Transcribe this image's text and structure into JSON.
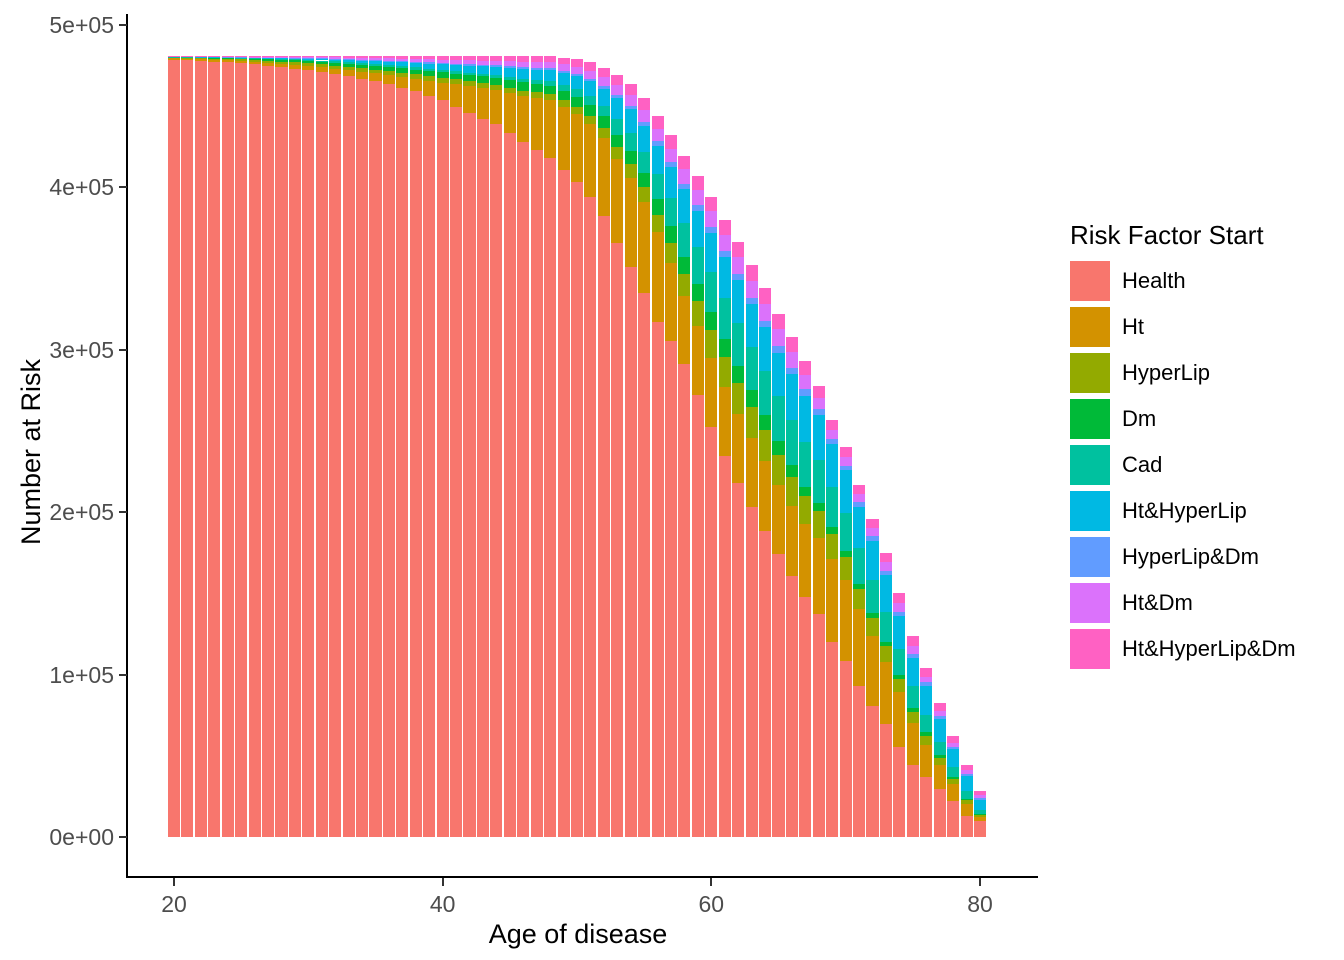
{
  "chart_data": {
    "type": "bar",
    "stacked": true,
    "title": "",
    "xlabel": "Age of disease",
    "ylabel": "Number at Risk",
    "legend_title": "Risk Factor Start",
    "legend_position": "right",
    "grid": false,
    "xlim": [
      17.5,
      83
    ],
    "ylim": [
      0,
      500000
    ],
    "x_ticks": [
      20,
      40,
      60,
      80
    ],
    "x_tick_labels": [
      "20",
      "40",
      "60",
      "80"
    ],
    "y_ticks": [
      0,
      100000,
      200000,
      300000,
      400000,
      500000
    ],
    "y_tick_labels": [
      "0e+00",
      "1e+05",
      "2e+05",
      "3e+05",
      "4e+05",
      "5e+05"
    ],
    "x": [
      20,
      21,
      22,
      23,
      24,
      25,
      26,
      27,
      28,
      29,
      30,
      31,
      32,
      33,
      34,
      35,
      36,
      37,
      38,
      39,
      40,
      41,
      42,
      43,
      44,
      45,
      46,
      47,
      48,
      49,
      50,
      51,
      52,
      53,
      54,
      55,
      56,
      57,
      58,
      59,
      60,
      61,
      62,
      63,
      64,
      65,
      66,
      67,
      68,
      69,
      70,
      71,
      72,
      73,
      74,
      75,
      76,
      77,
      78,
      79,
      80
    ],
    "series": [
      {
        "name": "Health",
        "color": "#F8766D",
        "values": [
          478750,
          478300,
          477800,
          477400,
          477000,
          476400,
          475700,
          474900,
          474000,
          473100,
          472200,
          470900,
          469600,
          468300,
          466900,
          465400,
          463500,
          461400,
          459400,
          456500,
          453600,
          449800,
          445750,
          442350,
          438850,
          433700,
          428250,
          423100,
          417900,
          410600,
          403200,
          393850,
          382700,
          365800,
          351100,
          334800,
          317300,
          305500,
          291100,
          272400,
          252400,
          234650,
          217800,
          203050,
          188600,
          174100,
          160700,
          147800,
          137400,
          120300,
          108400,
          93200,
          80800,
          69500,
          55550,
          44400,
          37200,
          29300,
          22100,
          13000,
          10000
        ]
      },
      {
        "name": "Ht",
        "color": "#D39200",
        "values": [
          800,
          900,
          1100,
          1200,
          1350,
          1500,
          1700,
          2000,
          2200,
          2500,
          2800,
          3200,
          3600,
          4000,
          4400,
          4900,
          5700,
          6600,
          7500,
          9200,
          11000,
          13700,
          16500,
          18700,
          21000,
          24500,
          28000,
          32000,
          36000,
          39000,
          42000,
          45000,
          48000,
          52000,
          55000,
          56000,
          55000,
          48000,
          42000,
          42000,
          42500,
          42500,
          42500,
          42500,
          43000,
          42500,
          43000,
          45000,
          47000,
          51000,
          50000,
          47000,
          43000,
          38500,
          33500,
          26000,
          19500,
          15000,
          10500,
          7500,
          2300
        ]
      },
      {
        "name": "HyperLip",
        "color": "#93AA00",
        "values": [
          500,
          600,
          650,
          750,
          800,
          900,
          1000,
          1100,
          1250,
          1350,
          1500,
          1650,
          1800,
          1950,
          2100,
          2300,
          2450,
          2600,
          2700,
          2850,
          3000,
          3000,
          3050,
          3050,
          3100,
          3200,
          3400,
          3500,
          3600,
          4000,
          4500,
          5200,
          6000,
          7000,
          8200,
          9500,
          11000,
          12500,
          13800,
          15500,
          17500,
          18500,
          19500,
          19500,
          19000,
          18500,
          18000,
          17000,
          16200,
          15400,
          14000,
          12500,
          11000,
          9500,
          8000,
          6800,
          5700,
          4300,
          3100,
          2100,
          1300
        ]
      },
      {
        "name": "Dm",
        "color": "#00BA38",
        "values": [
          400,
          500,
          550,
          650,
          700,
          800,
          900,
          1000,
          1150,
          1300,
          1400,
          1550,
          1700,
          1850,
          2000,
          2200,
          2400,
          2650,
          2850,
          3100,
          3300,
          3600,
          3950,
          4300,
          4600,
          4800,
          5000,
          5100,
          5200,
          5600,
          6000,
          6500,
          7000,
          7600,
          8200,
          8800,
          9400,
          10000,
          10500,
          10800,
          11000,
          10900,
          10500,
          10000,
          9200,
          8700,
          7200,
          6000,
          5000,
          4100,
          3800,
          3400,
          3100,
          2800,
          2600,
          2300,
          2100,
          1800,
          1400,
          1100,
          800
        ]
      },
      {
        "name": "Cad",
        "color": "#00C19F",
        "values": [
          150,
          200,
          230,
          270,
          300,
          350,
          420,
          500,
          580,
          660,
          750,
          850,
          960,
          1070,
          1180,
          1300,
          1350,
          1400,
          1400,
          1450,
          1500,
          1500,
          1500,
          1550,
          1600,
          1900,
          2300,
          2600,
          3000,
          3800,
          4600,
          5600,
          6700,
          9500,
          11000,
          13000,
          15500,
          17500,
          20500,
          22500,
          24500,
          25500,
          26500,
          26500,
          27000,
          27500,
          28000,
          27500,
          26500,
          24600,
          23500,
          22000,
          20500,
          18500,
          16000,
          13500,
          10700,
          8000,
          5800,
          4500,
          2200
        ]
      },
      {
        "name": "Ht&HyperLip",
        "color": "#00B9E3",
        "values": [
          150,
          200,
          230,
          270,
          300,
          350,
          430,
          500,
          600,
          700,
          800,
          950,
          1100,
          1300,
          1500,
          1700,
          2000,
          2300,
          2700,
          3000,
          3300,
          3700,
          4150,
          4600,
          5000,
          5500,
          6000,
          6300,
          6600,
          7400,
          8200,
          9200,
          10300,
          13000,
          14500,
          16000,
          17500,
          19000,
          21000,
          22500,
          24000,
          25000,
          26000,
          26500,
          27000,
          27000,
          28000,
          28500,
          28000,
          26700,
          26000,
          25000,
          24000,
          22500,
          20500,
          17500,
          18000,
          14500,
          11000,
          9500,
          6200
        ]
      },
      {
        "name": "HyperLip&Dm",
        "color": "#619CFF",
        "values": [
          50,
          60,
          80,
          90,
          100,
          120,
          150,
          190,
          220,
          260,
          300,
          360,
          420,
          480,
          540,
          600,
          660,
          720,
          780,
          840,
          900,
          950,
          1000,
          1000,
          1050,
          1100,
          1150,
          1180,
          1200,
          1300,
          1400,
          1550,
          1700,
          1900,
          2100,
          2400,
          2700,
          3000,
          3300,
          3500,
          3700,
          3850,
          4000,
          4100,
          4200,
          4150,
          4100,
          3900,
          3600,
          3200,
          3000,
          2900,
          2800,
          2700,
          2550,
          2400,
          2000,
          1800,
          1500,
          1300,
          1200
        ]
      },
      {
        "name": "Ht&Dm",
        "color": "#DB72FB",
        "values": [
          100,
          130,
          160,
          190,
          220,
          250,
          310,
          380,
          450,
          520,
          600,
          720,
          840,
          960,
          1080,
          1200,
          1350,
          1500,
          1700,
          1850,
          2000,
          2150,
          2300,
          2450,
          2600,
          2900,
          3200,
          3400,
          3600,
          4000,
          4400,
          4900,
          5400,
          6000,
          6600,
          7200,
          7800,
          8400,
          8900,
          9200,
          9600,
          10000,
          10300,
          10400,
          10500,
          10200,
          9800,
          8800,
          6800,
          5100,
          5000,
          5000,
          5000,
          5200,
          5500,
          5000,
          3600,
          3000,
          2400,
          2000,
          1800
        ]
      },
      {
        "name": "Ht&HyperLip&Dm",
        "color": "#FF61C3",
        "values": [
          100,
          140,
          180,
          220,
          260,
          300,
          370,
          450,
          530,
          610,
          700,
          840,
          980,
          1120,
          1260,
          1400,
          1600,
          1800,
          2000,
          2200,
          2400,
          2600,
          2800,
          3000,
          3200,
          3400,
          3700,
          3800,
          3900,
          4300,
          4700,
          5200,
          5700,
          6200,
          6800,
          7300,
          7800,
          8100,
          8400,
          8600,
          8800,
          9100,
          9400,
          9450,
          9500,
          9350,
          9200,
          8500,
          7500,
          6600,
          6300,
          6000,
          5800,
          5800,
          5800,
          5600,
          5200,
          4800,
          4200,
          3500,
          2700
        ]
      }
    ]
  }
}
